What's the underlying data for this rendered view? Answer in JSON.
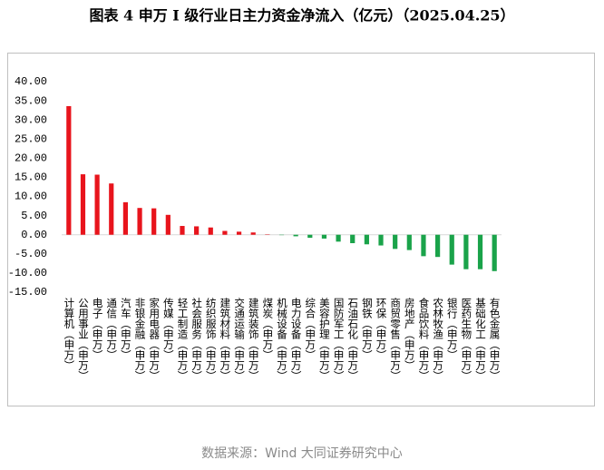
{
  "chart_data": {
    "type": "bar",
    "title": "图表 4   申万 I 级行业日主力资金净流入（亿元）（2025.04.25）",
    "source": "数据来源：Wind 大同证券研究中心",
    "categories": [
      "计算机（申万）",
      "公用事业（申万）",
      "电子（申万）",
      "通信（申万）",
      "汽车（申万）",
      "非银金融（申万）",
      "家用电器（申万）",
      "传媒（申万）",
      "轻工制造（申万）",
      "社会服务（申万）",
      "纺织服饰（申万）",
      "建筑材料（申万）",
      "交通运输（申万）",
      "建筑装饰（申万）",
      "煤炭（申万）",
      "机械设备（申万）",
      "电力设备（申万）",
      "综合（申万）",
      "美容护理（申万）",
      "国防军工（申万）",
      "石油石化（申万）",
      "钢铁（申万）",
      "环保（申万）",
      "商贸零售（申万）",
      "房地产（申万）",
      "食品饮料（申万）",
      "农林牧渔（申万）",
      "银行（申万）",
      "医药生物（申万）",
      "基础化工（申万）",
      "有色金属（申万）"
    ],
    "values": [
      33.6,
      15.8,
      15.7,
      13.4,
      8.5,
      7.0,
      6.9,
      5.2,
      2.3,
      2.2,
      1.9,
      1.0,
      0.8,
      0.6,
      0.1,
      -0.1,
      -0.4,
      -0.8,
      -1.0,
      -1.8,
      -2.2,
      -2.5,
      -2.8,
      -3.7,
      -4.0,
      -5.6,
      -5.8,
      -7.8,
      -9.0,
      -9.0,
      -9.5
    ],
    "positive_color": "#e8141c",
    "negative_color": "#1aa34a",
    "ylim": [
      -15,
      40
    ],
    "yticks": [
      {
        "value": -15,
        "label": "-15.00"
      },
      {
        "value": -10,
        "label": "-10.00"
      },
      {
        "value": -5,
        "label": "-5.00"
      },
      {
        "value": 0,
        "label": "0.00"
      },
      {
        "value": 5,
        "label": "5.00"
      },
      {
        "value": 10,
        "label": "10.00"
      },
      {
        "value": 15,
        "label": "15.00"
      },
      {
        "value": 20,
        "label": "20.00"
      },
      {
        "value": 25,
        "label": "25.00"
      },
      {
        "value": 30,
        "label": "30.00"
      },
      {
        "value": 35,
        "label": "35.00"
      },
      {
        "value": 40,
        "label": "40.00"
      }
    ],
    "grid": false
  }
}
